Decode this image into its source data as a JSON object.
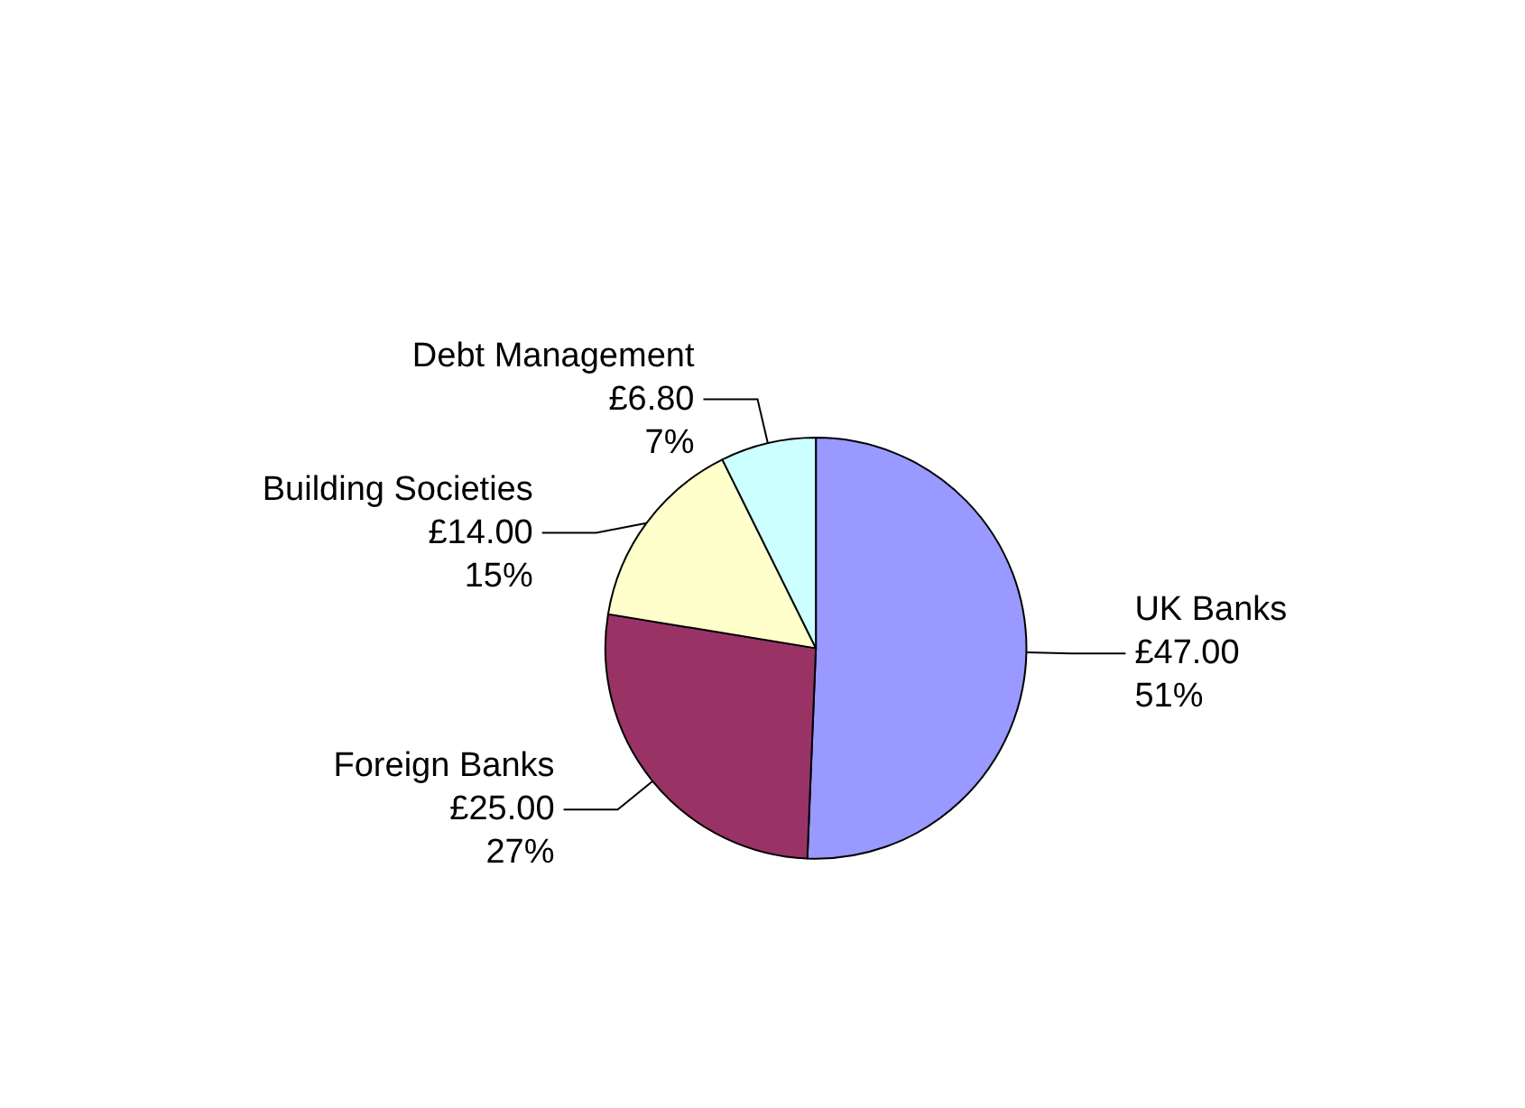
{
  "chart_data": {
    "type": "pie",
    "categories": [
      "UK Banks",
      "Foreign Banks",
      "Building Societies",
      "Debt Management"
    ],
    "values": [
      47,
      25,
      14,
      6.8
    ],
    "colors": [
      "#9999ff",
      "#993366",
      "#ffffcc",
      "#ccffff"
    ],
    "value_labels": [
      "£47.00\n51%",
      "£25.00\n27%",
      "£14.00\n15%",
      "£6.80\n7%"
    ],
    "legend": false
  }
}
